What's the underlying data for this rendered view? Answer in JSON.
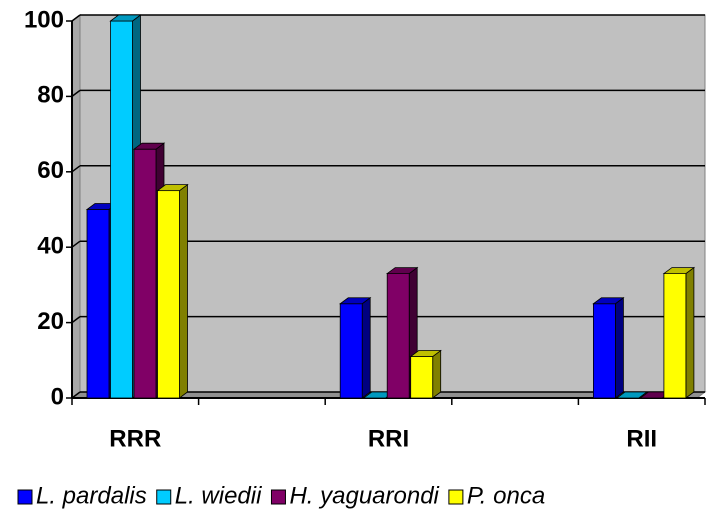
{
  "chart_data": {
    "type": "bar3d",
    "categories": [
      "RRR",
      null,
      "RRI",
      null,
      "RII"
    ],
    "series": [
      {
        "name": "L. pardalis",
        "color": "#0000ff",
        "values": [
          50,
          null,
          25,
          null,
          25
        ]
      },
      {
        "name": "L. wiedii",
        "color": "#00ccff",
        "values": [
          100,
          null,
          0,
          null,
          0
        ]
      },
      {
        "name": "H. yaguarondi",
        "color": "#800066",
        "values": [
          66,
          null,
          33,
          null,
          0
        ]
      },
      {
        "name": "P. onca",
        "color": "#ffff00",
        "values": [
          55,
          null,
          11,
          null,
          33
        ]
      }
    ],
    "ylim": [
      0,
      100
    ],
    "yticks": [
      0,
      20,
      40,
      60,
      80,
      100
    ],
    "grid": true,
    "legend": "bottom"
  }
}
